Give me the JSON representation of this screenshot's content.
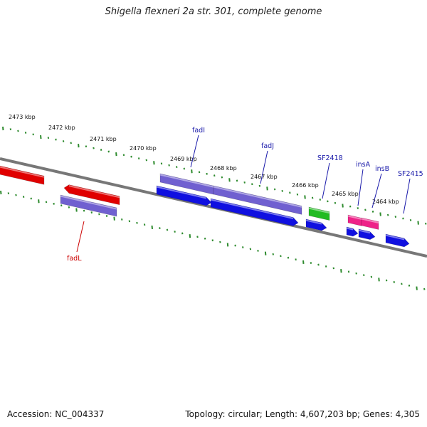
{
  "title": "Shigella flexneri 2a str. 301, complete genome",
  "footer": {
    "accession": "Accession: NC_004337",
    "summary": "Topology: circular; Length: 4,607,203 bp; Genes: 4,305"
  },
  "colors": {
    "backbone": "#777777",
    "tick": "#2e8b2e",
    "forward_cds": "#e00000",
    "reverse_cds": "#1010e0",
    "rna_or_other": "#7060d0",
    "green_feature": "#22bb22",
    "mobile_element": "#ee2288",
    "label_forward": "#cc0000",
    "label_reverse": "#1a1aaa"
  },
  "scale_labels": [
    "2473 kbp",
    "2472 kbp",
    "2471 kbp",
    "2470 kbp",
    "2469 kbp",
    "2468 kbp",
    "2467 kbp",
    "2466 kbp",
    "2465 kbp",
    "2464 kbp"
  ],
  "gene_labels": [
    {
      "id": "fadI",
      "text": "fadI",
      "color": "label_reverse"
    },
    {
      "id": "fadJ",
      "text": "fadJ",
      "color": "label_reverse"
    },
    {
      "id": "SF2418",
      "text": "SF2418",
      "color": "label_reverse"
    },
    {
      "id": "insA",
      "text": "insA",
      "color": "label_reverse"
    },
    {
      "id": "insB",
      "text": "insB",
      "color": "label_reverse"
    },
    {
      "id": "SF2415",
      "text": "SF2415",
      "color": "label_reverse"
    },
    {
      "id": "fadL",
      "text": "fadL",
      "color": "label_forward"
    }
  ]
}
